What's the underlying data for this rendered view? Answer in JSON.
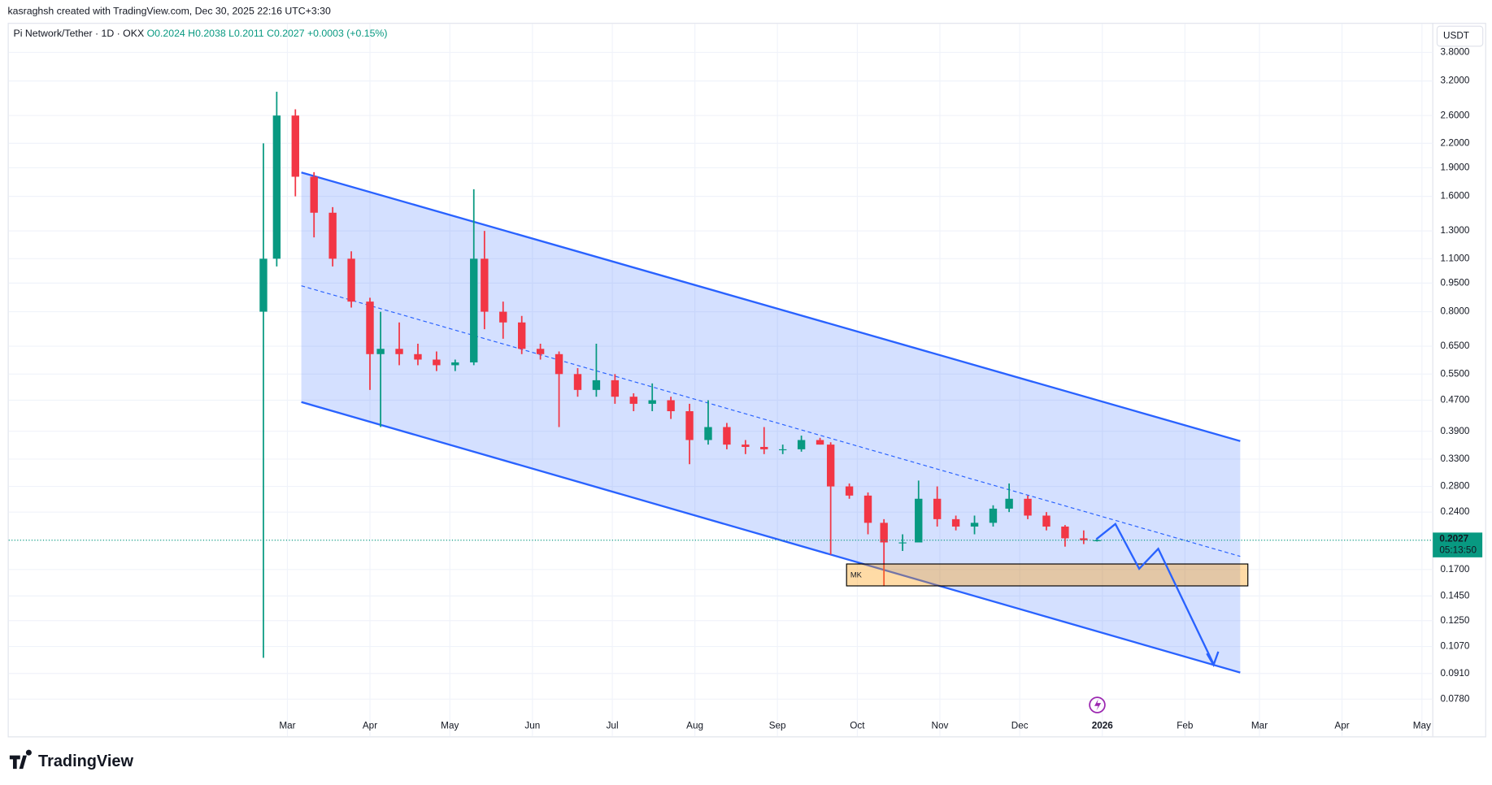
{
  "header": {
    "credit": "kasraghsh created with TradingView.com, Dec 30, 2025 22:16 UTC+3:30",
    "symbol": "Pi Network/Tether · 1D · OKX",
    "ohlc": [
      "O0.2024",
      "H0.2038",
      "L0.2011",
      "C0.2027",
      "+0.0003 (+0.15%)"
    ],
    "currency": "USDT",
    "brand": "TradingView"
  },
  "chart_data": {
    "type": "candlestick",
    "log_scale": true,
    "grid": true,
    "up_color": "#089981",
    "down_color": "#f23645",
    "x": [
      51,
      56,
      63,
      70,
      77,
      84,
      91,
      95,
      102,
      109,
      116,
      123,
      130,
      134,
      141,
      148,
      155,
      162,
      169,
      176,
      183,
      190,
      197,
      204,
      211,
      218,
      225,
      232,
      239,
      246,
      253,
      260,
      264,
      271,
      278,
      284,
      291,
      297,
      304,
      311,
      318,
      325,
      331,
      338,
      345,
      352,
      359,
      364
    ],
    "open": [
      0.8,
      1.1,
      2.6,
      1.8,
      1.45,
      1.1,
      0.85,
      0.62,
      0.64,
      0.62,
      0.6,
      0.58,
      0.59,
      1.1,
      0.8,
      0.75,
      0.64,
      0.62,
      0.55,
      0.5,
      0.53,
      0.48,
      0.46,
      0.47,
      0.44,
      0.37,
      0.4,
      0.36,
      0.355,
      0.35,
      0.35,
      0.37,
      0.36,
      0.28,
      0.265,
      0.225,
      0.2,
      0.2,
      0.26,
      0.23,
      0.22,
      0.225,
      0.245,
      0.26,
      0.235,
      0.22,
      0.205,
      0.2024
    ],
    "high": [
      2.2,
      3.0,
      2.7,
      1.85,
      1.5,
      1.15,
      0.87,
      0.8,
      0.75,
      0.66,
      0.63,
      0.6,
      1.67,
      1.3,
      0.85,
      0.78,
      0.66,
      0.63,
      0.57,
      0.66,
      0.55,
      0.49,
      0.52,
      0.48,
      0.46,
      0.47,
      0.41,
      0.37,
      0.4,
      0.36,
      0.38,
      0.375,
      0.365,
      0.285,
      0.27,
      0.23,
      0.21,
      0.29,
      0.28,
      0.235,
      0.235,
      0.25,
      0.285,
      0.265,
      0.24,
      0.222,
      0.215,
      0.2038
    ],
    "low": [
      0.1,
      1.05,
      1.6,
      1.25,
      1.05,
      0.82,
      0.5,
      0.4,
      0.58,
      0.58,
      0.56,
      0.56,
      0.58,
      0.72,
      0.68,
      0.62,
      0.6,
      0.4,
      0.48,
      0.48,
      0.46,
      0.44,
      0.44,
      0.42,
      0.32,
      0.36,
      0.35,
      0.34,
      0.34,
      0.34,
      0.345,
      0.36,
      0.186,
      0.26,
      0.21,
      0.154,
      0.19,
      0.2,
      0.22,
      0.215,
      0.21,
      0.22,
      0.24,
      0.23,
      0.215,
      0.195,
      0.198,
      0.2011
    ],
    "close": [
      1.1,
      2.6,
      1.8,
      1.45,
      1.1,
      0.85,
      0.62,
      0.64,
      0.62,
      0.6,
      0.58,
      0.59,
      1.1,
      0.8,
      0.75,
      0.64,
      0.62,
      0.55,
      0.5,
      0.53,
      0.48,
      0.46,
      0.47,
      0.44,
      0.37,
      0.4,
      0.36,
      0.355,
      0.35,
      0.35,
      0.37,
      0.36,
      0.28,
      0.265,
      0.225,
      0.2,
      0.2,
      0.26,
      0.23,
      0.22,
      0.225,
      0.245,
      0.26,
      0.235,
      0.22,
      0.205,
      0.2027,
      0.2027
    ],
    "xlim": [
      -45,
      489
    ],
    "xticks": [
      {
        "value": 60,
        "label": "Mar"
      },
      {
        "value": 91,
        "label": "Apr"
      },
      {
        "value": 121,
        "label": "May"
      },
      {
        "value": 152,
        "label": "Jun"
      },
      {
        "value": 182,
        "label": "Jul"
      },
      {
        "value": 213,
        "label": "Aug"
      },
      {
        "value": 244,
        "label": "Sep"
      },
      {
        "value": 274,
        "label": "Oct"
      },
      {
        "value": 305,
        "label": "Nov"
      },
      {
        "value": 335,
        "label": "Dec"
      },
      {
        "value": 366,
        "label": "2026"
      },
      {
        "value": 397,
        "label": "Feb"
      },
      {
        "value": 425,
        "label": "Mar"
      },
      {
        "value": 456,
        "label": "Apr"
      },
      {
        "value": 486,
        "label": "May"
      }
    ],
    "ylim": [
      0.071,
      4.6
    ],
    "yticks": [
      {
        "value": 3.8,
        "label": "3.8000"
      },
      {
        "value": 3.2,
        "label": "3.2000"
      },
      {
        "value": 2.6,
        "label": "2.6000"
      },
      {
        "value": 2.2,
        "label": "2.2000"
      },
      {
        "value": 1.9,
        "label": "1.9000"
      },
      {
        "value": 1.6,
        "label": "1.6000"
      },
      {
        "value": 1.3,
        "label": "1.3000"
      },
      {
        "value": 1.1,
        "label": "1.1000"
      },
      {
        "value": 0.95,
        "label": "0.9500"
      },
      {
        "value": 0.8,
        "label": "0.8000"
      },
      {
        "value": 0.65,
        "label": "0.6500"
      },
      {
        "value": 0.55,
        "label": "0.5500"
      },
      {
        "value": 0.47,
        "label": "0.4700"
      },
      {
        "value": 0.39,
        "label": "0.3900"
      },
      {
        "value": 0.33,
        "label": "0.3300"
      },
      {
        "value": 0.28,
        "label": "0.2800"
      },
      {
        "value": 0.24,
        "label": "0.2400"
      },
      {
        "value": 0.17,
        "label": "0.1700"
      },
      {
        "value": 0.145,
        "label": "0.1450"
      },
      {
        "value": 0.125,
        "label": "0.1250"
      },
      {
        "value": 0.107,
        "label": "0.1070"
      },
      {
        "value": 0.091,
        "label": "0.0910"
      },
      {
        "value": 0.078,
        "label": "0.0780"
      }
    ],
    "last_price": {
      "value": 0.2027,
      "label": "0.2027"
    },
    "countdown": "05:13:50",
    "annotation": "MK"
  }
}
